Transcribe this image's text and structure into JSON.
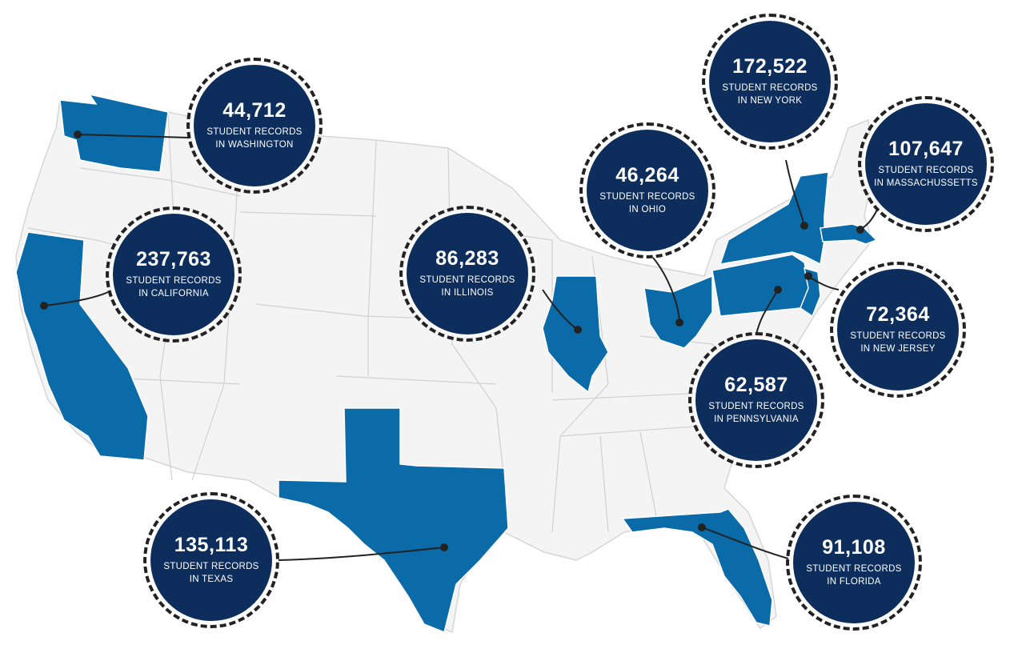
{
  "colors": {
    "land": "#f4f4f4",
    "border": "#d0d0d0",
    "highlight": "#0b6aa8",
    "bubble": "#0d2e5c",
    "bubble_text": "#ffffff",
    "leader": "#222222"
  },
  "callouts": [
    {
      "state": "Washington",
      "count": "44,712",
      "line1": "STUDENT RECORDS",
      "line2": "IN WASHINGTON"
    },
    {
      "state": "California",
      "count": "237,763",
      "line1": "STUDENT RECORDS",
      "line2": "IN CALIFORNIA"
    },
    {
      "state": "Illinois",
      "count": "86,283",
      "line1": "STUDENT RECORDS",
      "line2": "IN ILLINOIS"
    },
    {
      "state": "Ohio",
      "count": "46,264",
      "line1": "STUDENT RECORDS",
      "line2": "IN OHIO"
    },
    {
      "state": "New York",
      "count": "172,522",
      "line1": "STUDENT RECORDS",
      "line2": "IN NEW YORK"
    },
    {
      "state": "Massachusetts",
      "count": "107,647",
      "line1": "STUDENT RECORDS",
      "line2": "IN MASSACHUSSETTS"
    },
    {
      "state": "New Jersey",
      "count": "72,364",
      "line1": "STUDENT RECORDS",
      "line2": "IN NEW JERSEY"
    },
    {
      "state": "Pennsylvania",
      "count": "62,587",
      "line1": "STUDENT RECORDS",
      "line2": "IN PENNSYLVANIA"
    },
    {
      "state": "Texas",
      "count": "135,113",
      "line1": "STUDENT RECORDS",
      "line2": "IN TEXAS"
    },
    {
      "state": "Florida",
      "count": "91,108",
      "line1": "STUDENT RECORDS",
      "line2": "IN FLORIDA"
    }
  ]
}
